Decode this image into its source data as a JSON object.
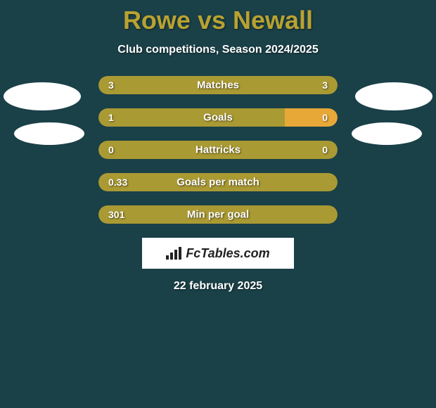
{
  "colors": {
    "background": "#1a4048",
    "title": "#b8a232",
    "text_light": "#ffffff",
    "bar_primary": "#aa9a33",
    "bar_secondary": "#e8a838",
    "avatar": "#ffffff",
    "logo_bg": "#ffffff",
    "logo_text": "#222222"
  },
  "header": {
    "title": "Rowe vs Newall",
    "subtitle": "Club competitions, Season 2024/2025"
  },
  "stats": [
    {
      "label": "Matches",
      "left_value": "3",
      "right_value": "3",
      "left_pct": 50,
      "right_pct": 50,
      "left_color": "#aa9a33",
      "right_color": "#aa9a33"
    },
    {
      "label": "Goals",
      "left_value": "1",
      "right_value": "0",
      "left_pct": 78,
      "right_pct": 22,
      "left_color": "#aa9a33",
      "right_color": "#e8a838"
    },
    {
      "label": "Hattricks",
      "left_value": "0",
      "right_value": "0",
      "left_pct": 100,
      "right_pct": 0,
      "left_color": "#aa9a33",
      "right_color": "#aa9a33"
    },
    {
      "label": "Goals per match",
      "left_value": "0.33",
      "right_value": "",
      "left_pct": 100,
      "right_pct": 0,
      "left_color": "#aa9a33",
      "right_color": "#aa9a33"
    },
    {
      "label": "Min per goal",
      "left_value": "301",
      "right_value": "",
      "left_pct": 100,
      "right_pct": 0,
      "left_color": "#aa9a33",
      "right_color": "#aa9a33"
    }
  ],
  "logo": {
    "text": "FcTables.com"
  },
  "date": "22 february 2025"
}
